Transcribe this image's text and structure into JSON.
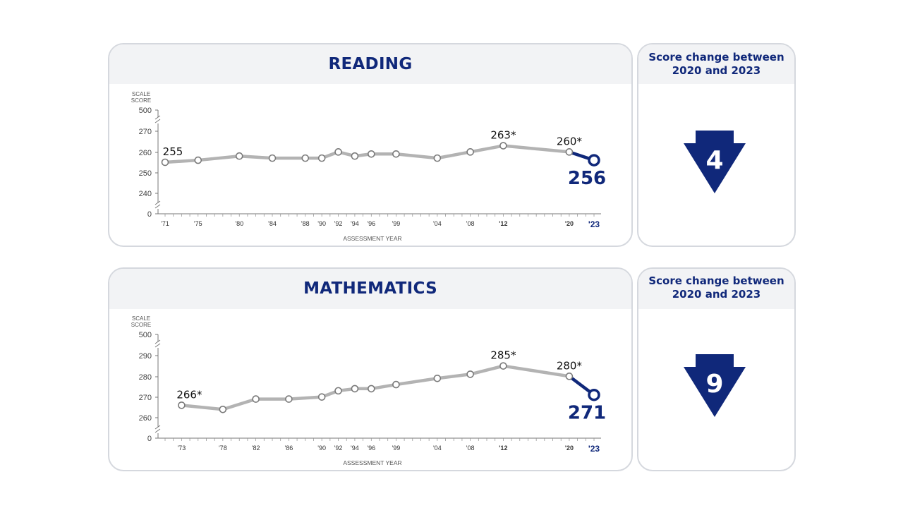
{
  "colors": {
    "navy": "#10287a",
    "line_gray": "#b3b3b3",
    "header_bg": "#f2f3f5",
    "border": "#d5d8de"
  },
  "charts": [
    {
      "subject": "READING",
      "change": {
        "heading_line1": "Score change between",
        "heading_line2": "2020 and 2023",
        "value": "4",
        "direction": "down",
        "icon": "down-arrow-icon"
      },
      "chart_data": {
        "type": "line",
        "title": "READING",
        "ylabel_line1": "SCALE",
        "ylabel_line2": "SCORE",
        "xlabel": "ASSESSMENT YEAR",
        "ylim": [
          240,
          270
        ],
        "y_ticks": [
          "500",
          "270",
          "260",
          "250",
          "240",
          "0"
        ],
        "axis_break": true,
        "x": [
          1971,
          1975,
          1980,
          1984,
          1988,
          1990,
          1992,
          1994,
          1996,
          1999,
          2004,
          2008,
          2012,
          2020,
          2023
        ],
        "x_tick_labels": [
          "'71",
          "'75",
          "'80",
          "'84",
          "'88",
          "'90",
          "'92",
          "'94",
          "'96",
          "'99",
          "'04",
          "'08",
          "'12",
          "'20",
          "'23"
        ],
        "values": [
          255,
          256,
          258,
          257,
          257,
          257,
          260,
          258,
          259,
          259,
          257,
          260,
          263,
          260,
          256
        ],
        "annotations": [
          {
            "index": 0,
            "text": "255",
            "style": "normal"
          },
          {
            "index": 12,
            "text": "263*",
            "style": "normal"
          },
          {
            "index": 13,
            "text": "260*",
            "style": "normal"
          },
          {
            "index": 14,
            "text": "256",
            "style": "highlight"
          }
        ]
      }
    },
    {
      "subject": "MATHEMATICS",
      "change": {
        "heading_line1": "Score change between",
        "heading_line2": "2020 and 2023",
        "value": "9",
        "direction": "down",
        "icon": "down-arrow-icon"
      },
      "chart_data": {
        "type": "line",
        "title": "MATHEMATICS",
        "ylabel_line1": "SCALE",
        "ylabel_line2": "SCORE",
        "xlabel": "ASSESSMENT YEAR",
        "ylim": [
          260,
          290
        ],
        "y_ticks": [
          "500",
          "290",
          "280",
          "270",
          "260",
          "0"
        ],
        "axis_break": true,
        "x": [
          1973,
          1978,
          1982,
          1986,
          1990,
          1992,
          1994,
          1996,
          1999,
          2004,
          2008,
          2012,
          2020,
          2023
        ],
        "x_tick_labels": [
          "'73",
          "'78",
          "'82",
          "'86",
          "'90",
          "'92",
          "'94",
          "'96",
          "'99",
          "'04",
          "'08",
          "'12",
          "'20",
          "'23"
        ],
        "values": [
          266,
          264,
          269,
          269,
          270,
          273,
          274,
          274,
          276,
          279,
          281,
          285,
          280,
          271
        ],
        "annotations": [
          {
            "index": 0,
            "text": "266*",
            "style": "normal"
          },
          {
            "index": 11,
            "text": "285*",
            "style": "normal"
          },
          {
            "index": 12,
            "text": "280*",
            "style": "normal"
          },
          {
            "index": 13,
            "text": "271",
            "style": "highlight"
          }
        ]
      }
    }
  ]
}
